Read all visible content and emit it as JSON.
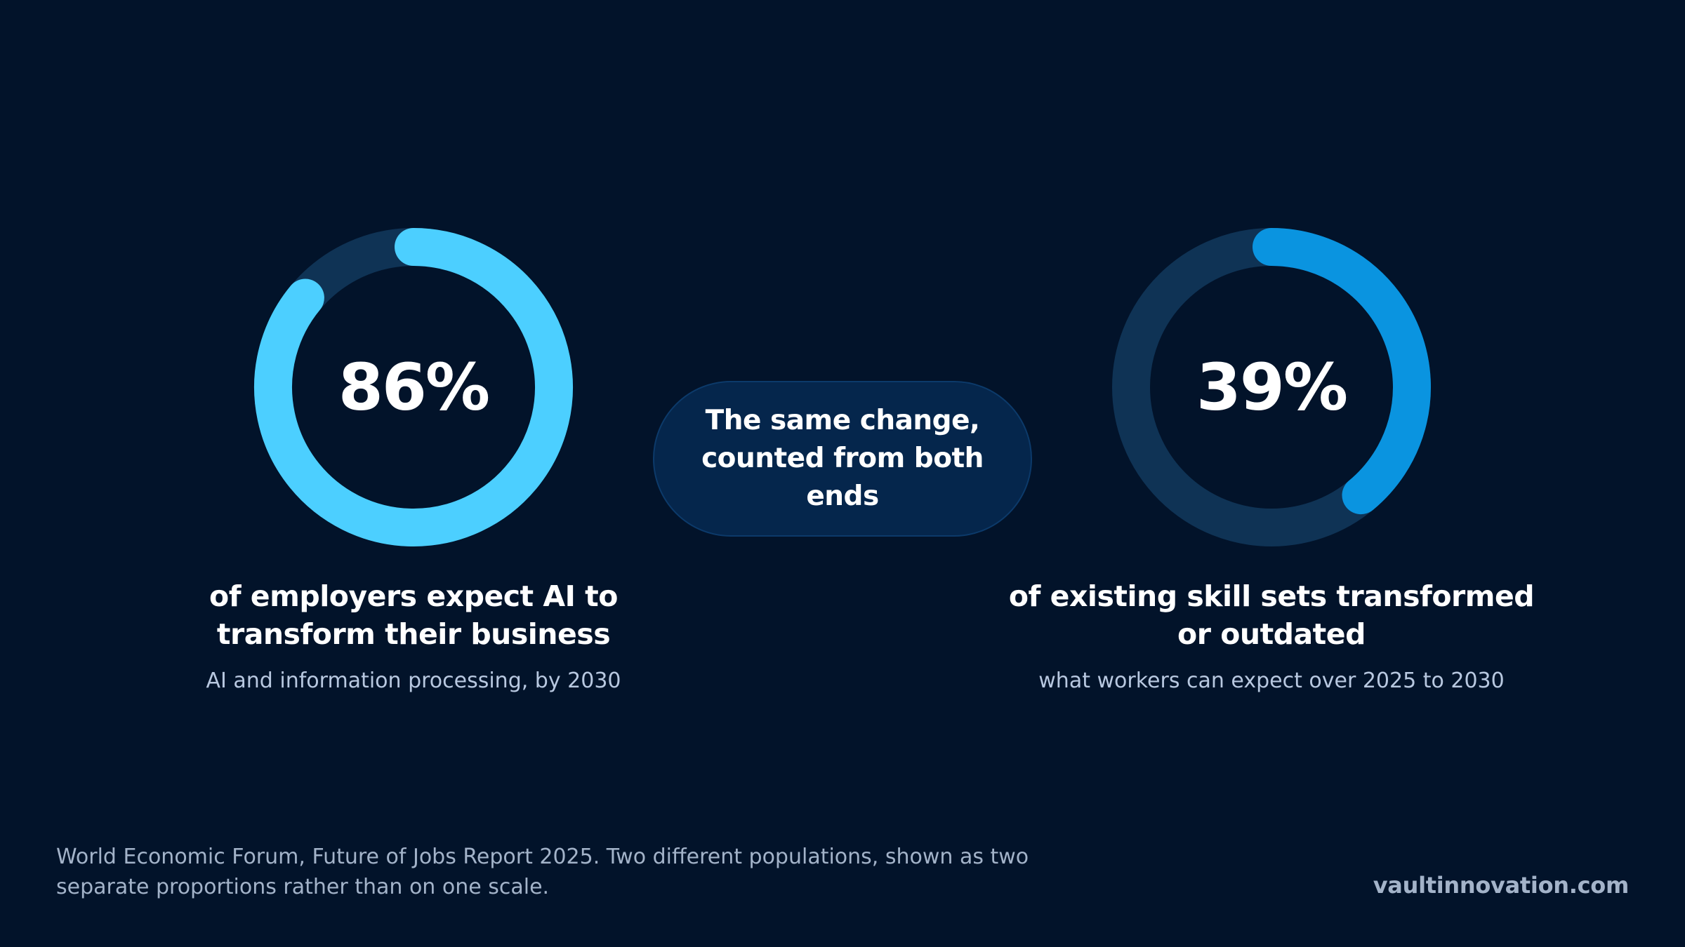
{
  "chart_data": [
    {
      "type": "pie",
      "variant": "donut",
      "value_label": "86%",
      "values": [
        86,
        14
      ],
      "label": "of employers expect AI to transform their business",
      "sublabel": "AI and information processing, by 2030",
      "colors": {
        "fill": "#4ccfff",
        "track": "#0f3355"
      }
    },
    {
      "type": "pie",
      "variant": "donut",
      "value_label": "39%",
      "values": [
        39,
        61
      ],
      "label": "of existing skill sets transformed or outdated",
      "sublabel": "what workers can expect over 2025 to 2030",
      "colors": {
        "fill": "#0a94e0",
        "track": "#0f3355"
      }
    }
  ],
  "callout": "The same change, counted from both ends",
  "footnote": "World Economic Forum, Future of Jobs Report 2025. Two different populations, shown as two separate proportions rather than on one scale.",
  "brand": "vaultinnovation.com",
  "colors": {
    "background": "#02132a",
    "pill_background": "#05264c",
    "muted_text": "#a3b3c9"
  }
}
